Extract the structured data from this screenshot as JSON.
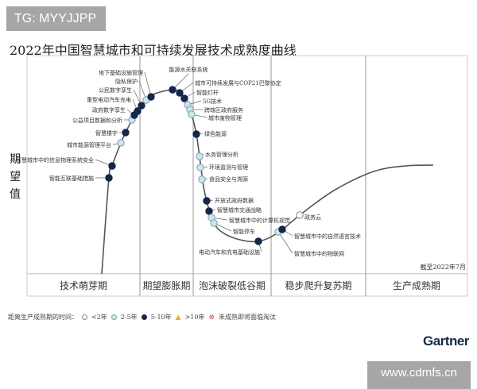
{
  "watermark_top": "TG: MYYJJPP",
  "watermark_bottom": "www.cdmfs.cn",
  "logo": "Gartner",
  "chart_data": {
    "type": "line",
    "title": "2022年中国智慧城市和可持续发展技术成熟度曲线",
    "ylabel": "期望值",
    "xlabel": "",
    "annotation": "截至2022年7月",
    "grid": false,
    "phases": [
      "技术萌芽期",
      "期望膨胀期",
      "泡沫破裂低谷期",
      "稳步爬升复苏期",
      "生产成熟期"
    ],
    "legend": {
      "title": "距离生产成熟期的时间：",
      "placement": "bottom-left",
      "items": [
        {
          "key": "lt2",
          "label": "<2年",
          "color": "#ffffff"
        },
        {
          "key": "2to5",
          "label": "2-5年",
          "color": "#cfe3ea"
        },
        {
          "key": "5to10",
          "label": "5-10年",
          "color": "#14264a"
        },
        {
          "key": "gt10",
          "label": ">10年",
          "color": "#e3b52a"
        },
        {
          "key": "obsolete",
          "label": "未成熟即将面临淘汰",
          "color": "#d84a4a"
        }
      ]
    },
    "points": [
      {
        "name": "智能互联基础措施",
        "phase": "技术萌芽期",
        "time": "5to10"
      },
      {
        "name": "智慧城市中的信息物理系统安全",
        "phase": "技术萌芽期",
        "time": "5to10"
      },
      {
        "name": "城市能源管理平台",
        "phase": "技术萌芽期",
        "time": "2to5"
      },
      {
        "name": "智慧楼宇",
        "phase": "技术萌芽期",
        "time": "5to10"
      },
      {
        "name": "公益项目数据和分析",
        "phase": "技术萌芽期",
        "time": "2to5"
      },
      {
        "name": "政府数字孪生",
        "phase": "技术萌芽期",
        "time": "5to10"
      },
      {
        "name": "重型电动汽车充电",
        "phase": "技术萌芽期",
        "time": "5to10"
      },
      {
        "name": "公民数字孪生",
        "phase": "期望膨胀期",
        "time": "5to10"
      },
      {
        "name": "隐私保护",
        "phase": "期望膨胀期",
        "time": "2to5"
      },
      {
        "name": "地下基础设施管理",
        "phase": "期望膨胀期",
        "time": "5to10"
      },
      {
        "name": "能源水关联系统",
        "phase": "期望膨胀期",
        "time": "5to10"
      },
      {
        "name": "城市可持续发展与COP21巴黎协定",
        "phase": "期望膨胀期",
        "time": "5to10"
      },
      {
        "name": "智能灯杆",
        "phase": "期望膨胀期",
        "time": "5to10"
      },
      {
        "name": "5G技术",
        "phase": "期望膨胀期",
        "time": "2to5"
      },
      {
        "name": "跨辖区政府服务",
        "phase": "期望膨胀期",
        "time": "2to5"
      },
      {
        "name": "城市废物管理",
        "phase": "期望膨胀期",
        "time": "2to5"
      },
      {
        "name": "绿色能源",
        "phase": "泡沫破裂低谷期",
        "time": "5to10"
      },
      {
        "name": "水务管理分析",
        "phase": "泡沫破裂低谷期",
        "time": "2to5"
      },
      {
        "name": "环境监测与管理",
        "phase": "泡沫破裂低谷期",
        "time": "2to5"
      },
      {
        "name": "食品安全与溯源",
        "phase": "泡沫破裂低谷期",
        "time": "2to5"
      },
      {
        "name": "开放式政府数据",
        "phase": "泡沫破裂低谷期",
        "time": "5to10"
      },
      {
        "name": "智慧城市交通战略",
        "phase": "泡沫破裂低谷期",
        "time": "5to10"
      },
      {
        "name": "智慧城市中的计算机视觉",
        "phase": "泡沫破裂低谷期",
        "time": "2to5"
      },
      {
        "name": "智能停车",
        "phase": "泡沫破裂低谷期",
        "time": "2to5"
      },
      {
        "name": "电动汽车和充电基础设施",
        "phase": "泡沫破裂低谷期",
        "time": "5to10"
      },
      {
        "name": "智慧城市中的物联网",
        "phase": "稳步爬升复苏期",
        "time": "2to5"
      },
      {
        "name": "智慧城市中的自然语言技术",
        "phase": "稳步爬升复苏期",
        "time": "5to10"
      },
      {
        "name": "政务云",
        "phase": "稳步爬升复苏期",
        "time": "lt2"
      }
    ]
  }
}
